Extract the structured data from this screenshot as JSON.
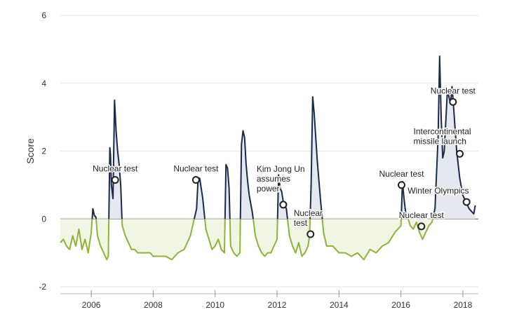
{
  "chart_data": {
    "type": "area",
    "ylabel": "Score",
    "ylim": [
      -2,
      6
    ],
    "y_ticks": [
      -2,
      0,
      2,
      4,
      6
    ],
    "xlim": [
      2005.0,
      2018.5
    ],
    "x_ticks": [
      2006,
      2008,
      2010,
      2012,
      2014,
      2016,
      2018
    ],
    "grid": "horizontal",
    "colors": {
      "positive_line": "#1b2a4a",
      "positive_fill": "#e4e8ef",
      "negative_line": "#8db33a",
      "negative_fill": "#f1f6e4",
      "zero_line": "#555555"
    },
    "series": [
      {
        "x": [
          2005.0,
          2005.1,
          2005.2,
          2005.3,
          2005.4,
          2005.5,
          2005.6,
          2005.7,
          2005.8,
          2005.9,
          2006.0,
          2006.05,
          2006.1,
          2006.15,
          2006.2,
          2006.3,
          2006.4,
          2006.5,
          2006.55,
          2006.6,
          2006.62,
          2006.65,
          2006.7,
          2006.75,
          2006.8,
          2006.85,
          2006.9,
          2006.95,
          2007.0,
          2007.1,
          2007.2,
          2007.3,
          2007.4,
          2007.5,
          2007.6,
          2007.7,
          2007.8,
          2007.9,
          2008.0,
          2008.2,
          2008.4,
          2008.6,
          2008.8,
          2009.0,
          2009.2,
          2009.3,
          2009.4,
          2009.45,
          2009.5,
          2009.6,
          2009.7,
          2009.8,
          2009.9,
          2010.0,
          2010.1,
          2010.2,
          2010.3,
          2010.35,
          2010.4,
          2010.45,
          2010.5,
          2010.6,
          2010.7,
          2010.8,
          2010.85,
          2010.9,
          2010.95,
          2011.0,
          2011.05,
          2011.1,
          2011.2,
          2011.3,
          2011.4,
          2011.5,
          2011.6,
          2011.7,
          2011.8,
          2011.9,
          2012.0,
          2012.05,
          2012.1,
          2012.15,
          2012.2,
          2012.3,
          2012.4,
          2012.5,
          2012.6,
          2012.7,
          2012.8,
          2012.9,
          2013.0,
          2013.05,
          2013.1,
          2013.15,
          2013.2,
          2013.25,
          2013.3,
          2013.4,
          2013.5,
          2013.6,
          2013.7,
          2013.8,
          2013.9,
          2014.0,
          2014.2,
          2014.4,
          2014.6,
          2014.8,
          2015.0,
          2015.2,
          2015.4,
          2015.6,
          2015.8,
          2015.9,
          2016.0,
          2016.05,
          2016.1,
          2016.15,
          2016.2,
          2016.3,
          2016.4,
          2016.5,
          2016.6,
          2016.7,
          2016.8,
          2016.9,
          2017.0,
          2017.1,
          2017.2,
          2017.25,
          2017.3,
          2017.35,
          2017.4,
          2017.5,
          2017.6,
          2017.65,
          2017.7,
          2017.8,
          2017.9,
          2018.0,
          2018.1,
          2018.2,
          2018.3,
          2018.35,
          2018.4
        ],
        "y": [
          -0.7,
          -0.6,
          -0.8,
          -0.9,
          -0.5,
          -0.8,
          -0.3,
          -0.9,
          -0.6,
          -1.0,
          -0.4,
          0.3,
          0.1,
          0.05,
          -0.5,
          -0.8,
          -1.0,
          -1.2,
          -1.1,
          2.1,
          1.9,
          1.0,
          0.6,
          3.5,
          2.6,
          2.0,
          1.6,
          1.0,
          -0.2,
          -0.5,
          -0.7,
          -0.9,
          -0.9,
          -1.0,
          -1.0,
          -1.0,
          -1.0,
          -1.0,
          -1.1,
          -1.1,
          -1.1,
          -1.2,
          -1.0,
          -0.9,
          -0.5,
          -0.1,
          0.3,
          1.2,
          1.2,
          0.6,
          -0.3,
          -0.6,
          -0.9,
          -0.8,
          -0.6,
          -0.9,
          -1.0,
          1.6,
          1.5,
          0.9,
          -0.8,
          -1.0,
          -1.1,
          -1.0,
          2.2,
          2.6,
          2.4,
          1.6,
          1.1,
          0.7,
          0.2,
          -0.5,
          -0.8,
          -1.0,
          -1.1,
          -1.0,
          -1.0,
          -0.8,
          -0.6,
          1.3,
          0.9,
          0.8,
          0.5,
          0.3,
          -0.5,
          -0.8,
          -1.0,
          -0.7,
          -1.1,
          -1.0,
          -0.8,
          -0.5,
          1.0,
          3.6,
          3.1,
          2.4,
          1.7,
          0.6,
          -0.4,
          -0.8,
          -0.8,
          -0.8,
          -0.9,
          -1.0,
          -1.0,
          -1.1,
          -1.0,
          -1.2,
          -0.9,
          -1.0,
          -0.8,
          -0.7,
          -0.4,
          -0.3,
          -0.2,
          1.1,
          0.6,
          0.2,
          0.1,
          -0.2,
          -0.3,
          -0.1,
          -0.4,
          -0.6,
          -0.4,
          -0.2,
          -0.1,
          0.3,
          2.4,
          4.8,
          3.0,
          1.8,
          2.0,
          3.8,
          3.4,
          3.9,
          3.3,
          2.0,
          1.2,
          0.7,
          0.5,
          0.3,
          0.2,
          0.15,
          0.4
        ]
      }
    ],
    "annotations": [
      {
        "label": "Nuclear test",
        "x": 2006.77,
        "y": 1.15
      },
      {
        "label": "Nuclear test",
        "x": 2009.38,
        "y": 1.15
      },
      {
        "label": "Kim Jong Un assumes power",
        "x": 2012.2,
        "y": 0.42
      },
      {
        "label": "Nuclear test",
        "x": 2013.08,
        "y": -0.45
      },
      {
        "label": "Nuclear test",
        "x": 2016.02,
        "y": 1.0
      },
      {
        "label": "Nuclear test",
        "x": 2016.66,
        "y": -0.22
      },
      {
        "label": "Nuclear test",
        "x": 2017.68,
        "y": 3.45
      },
      {
        "label": "Intercontinental missile launch",
        "x": 2017.9,
        "y": 1.92
      },
      {
        "label": "Winter Olympics",
        "x": 2018.12,
        "y": 0.5
      }
    ]
  }
}
